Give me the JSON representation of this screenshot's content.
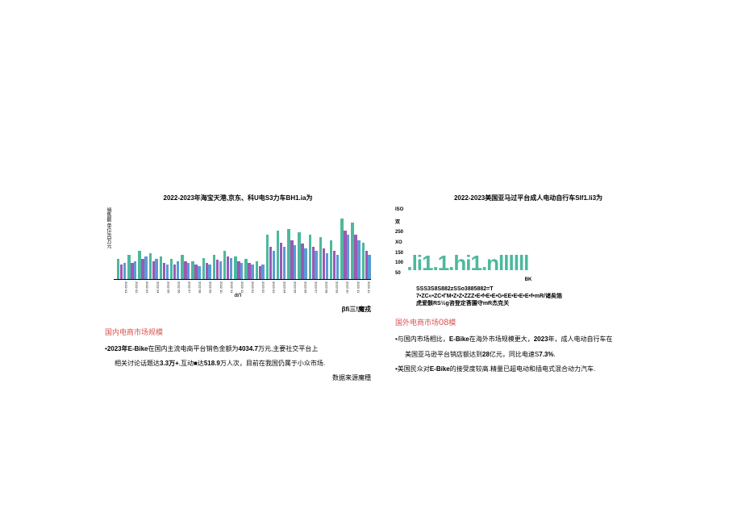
{
  "left": {
    "chart_title": "2022-2023年海宝天港,京东、科U电S3力车BH1.ia为",
    "y_axis_label": "销售额 单位/百万元",
    "x_axis_label": "an",
    "legend": "βfi三!魔戎",
    "section_header": "国内电商市场规模",
    "bullet1_pre": "•",
    "bullet1_b1": "2023年E-Bike",
    "bullet1_t1": "在国内主流电商平台销色金额为",
    "bullet1_b2": "4034.7",
    "bullet1_t2": "万元,主要社交平台上",
    "bullet2_t1": "相关讨论话题达",
    "bullet2_b1": "3.3万+",
    "bullet2_t2": ",互动■达",
    "bullet2_b2": "518.9",
    "bullet2_t3": "万人次，目前在我国仍属于小众市场.",
    "data_source": "数据来源魔穗",
    "colors": {
      "bar1": "#5b9bd5",
      "bar2": "#ed7d31",
      "bar3": "#a5a5a5",
      "bar_teal": "#4db89e",
      "bar_purple": "#9b59b6"
    },
    "x_labels": [
      "2022 01",
      "2022 02",
      "2022 03",
      "2022 04",
      "2022 05",
      "2022 06",
      "2022 07",
      "2022 08",
      "2022 09",
      "2022 10",
      "2022 11",
      "2022 12",
      "2023 01",
      "2023 02",
      "2023 03",
      "2023 04",
      "2023 05",
      "2023 06",
      "2023 07",
      "2023 08",
      "2023 09",
      "2023 10",
      "2023 11",
      "2023 12"
    ],
    "bar_data": [
      [
        25,
        18,
        20
      ],
      [
        30,
        20,
        22
      ],
      [
        35,
        25,
        28
      ],
      [
        32,
        22,
        25
      ],
      [
        28,
        20,
        18
      ],
      [
        25,
        18,
        22
      ],
      [
        30,
        22,
        20
      ],
      [
        22,
        18,
        16
      ],
      [
        26,
        20,
        18
      ],
      [
        30,
        24,
        22
      ],
      [
        35,
        28,
        26
      ],
      [
        28,
        22,
        20
      ],
      [
        25,
        20,
        18
      ],
      [
        22,
        16,
        18
      ],
      [
        55,
        40,
        35
      ],
      [
        60,
        45,
        40
      ],
      [
        62,
        48,
        42
      ],
      [
        58,
        44,
        38
      ],
      [
        55,
        40,
        35
      ],
      [
        52,
        38,
        32
      ],
      [
        48,
        35,
        30
      ],
      [
        75,
        60,
        55
      ],
      [
        70,
        55,
        48
      ],
      [
        45,
        35,
        30
      ]
    ]
  },
  "right": {
    "chart_title": "2022-2023美国亚马过平台成人电动自行车Slf1.li3为",
    "y_labels": [
      "ISO",
      "双",
      "250",
      "XO",
      "150",
      "100",
      "50"
    ],
    "chart_visual": ".li1.1.hi1.nllllll",
    "bk_label": "BK",
    "x_label_line1": "SSS3S8S882zSSo3885882=T",
    "x_label_line2": "7•ZC«•ZC•ГM•Z•Z•ZZZ•E•f•E•E•G•EE•E•E•E•f•mR/诸矣箔",
    "x_label_line3": "虎爱骸RS½g咨登定莟腸守mR杰克关",
    "section_header_pre": "国外电商市场",
    "section_header_num": "08",
    "section_header_post": "模",
    "bullet1_t1": "•与国内市场相比，",
    "bullet1_b1": "E-Bike",
    "bullet1_t2": "在海外市场规模更大，",
    "bullet1_b2": "2023",
    "bullet1_t3": "年，成人电动自行车在",
    "bullet2_t1": "美国亚马逊平台销店额达到",
    "bullet2_b1": "28",
    "bullet2_t2": "亿元，同比电速S",
    "bullet2_b2": "7.3%",
    "bullet2_t3": ".",
    "bullet3_t1": "•美国民众对",
    "bullet3_b1": "E-Bike",
    "bullet3_t2": "的接受度较高.精量已超电动和插电式混合动力汽车.",
    "teal_color": "#4db89e"
  }
}
